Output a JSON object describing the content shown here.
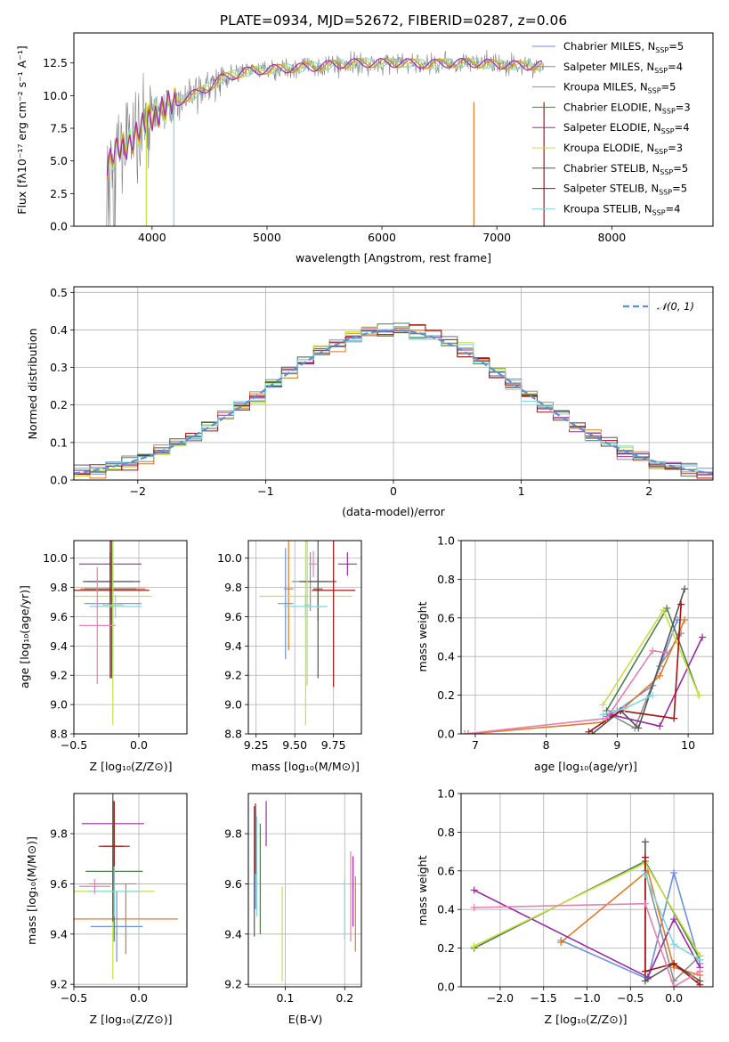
{
  "colors": {
    "Chabrier MILES": "#6c8ee3",
    "Salpeter MILES": "#8e8e8e",
    "Kroupa MILES": "#e07b24",
    "Chabrier ELODIE": "#4e7d4e",
    "Salpeter ELODIE": "#9b2aa6",
    "Kroupa ELODIE": "#c8e040",
    "Chabrier STELIB": "#555555",
    "Salpeter STELIB": "#a81010",
    "Kroupa STELIB": "#7fd8df",
    "extra_pink": "#e87fb0",
    "extra_lime": "#a8e060",
    "data_gray": "#808080",
    "normal_curve": "#5b8fd6"
  },
  "chart_data": [
    {
      "id": "spectrum",
      "type": "line",
      "title": "PLATE=0934, MJD=52672, FIBERID=0287, z=0.06",
      "xlabel": "wavelength [Angstrom, rest frame]",
      "ylabel": "Flux [fλ10⁻¹⁷ erg cm⁻² s⁻¹ A⁻¹]",
      "xlim": [
        3320,
        8880
      ],
      "ylim": [
        0,
        14.8
      ],
      "xticks": [
        4000,
        5000,
        6000,
        7000,
        8000
      ],
      "yticks": [
        0.0,
        2.5,
        5.0,
        7.5,
        10.0,
        12.5
      ],
      "legend_position": "right",
      "legend": [
        "Chabrier MILES, N_SSP=5",
        "Salpeter MILES, N_SSP=4",
        "Kroupa MILES, N_SSP=5",
        "Chabrier ELODIE, N_SSP=3",
        "Salpeter ELODIE, N_SSP=4",
        "Kroupa ELODIE, N_SSP=3",
        "Chabrier STELIB, N_SSP=5",
        "Salpeter STELIB, N_SSP=5",
        "Kroupa STELIB, N_SSP=4"
      ],
      "continuum_x": [
        3600,
        3700,
        3800,
        3900,
        4000,
        4100,
        4200,
        4300,
        4400,
        4500,
        4600,
        4800,
        5000,
        5200,
        5400,
        5600,
        5800,
        6000,
        6200,
        6400,
        6600,
        6800,
        7000,
        7200,
        7400
      ],
      "continuum_y": [
        4.5,
        5.8,
        6.4,
        7.3,
        8.5,
        9.0,
        9.4,
        9.9,
        10.2,
        10.7,
        11.3,
        11.8,
        12.0,
        12.1,
        12.2,
        12.4,
        12.5,
        12.5,
        12.5,
        12.4,
        12.5,
        12.5,
        12.4,
        12.3,
        12.3
      ]
    },
    {
      "id": "residuals",
      "type": "bar",
      "xlabel": "(data-model)/error",
      "ylabel": "Normed distribution",
      "xlim": [
        -2.5,
        2.5
      ],
      "ylim": [
        0,
        0.515
      ],
      "xticks": [
        -2,
        -1,
        0,
        1,
        2
      ],
      "yticks": [
        0.0,
        0.1,
        0.2,
        0.3,
        0.4,
        0.5
      ],
      "legend": [
        "𝒩(0, 1)"
      ],
      "legend_position": "top-right"
    },
    {
      "id": "age_vs_Z",
      "type": "scatter",
      "xlabel": "Z [log₁₀(Z/Z⊙)]",
      "ylabel": "age  [log₁₀(age/yr)]",
      "xlim": [
        -0.5,
        0.37
      ],
      "ylim": [
        8.8,
        10.12
      ],
      "xticks": [
        -0.5,
        0.0
      ],
      "yticks": [
        8.8,
        9.0,
        9.2,
        9.4,
        9.6,
        9.8,
        10.0
      ],
      "points": [
        {
          "c": "Chabrier MILES",
          "x": -0.2,
          "y": 9.69,
          "xe": 0.22,
          "ye": 0.38
        },
        {
          "c": "Salpeter MILES",
          "x": -0.22,
          "y": 9.84,
          "xe": 0.18,
          "ye": 0.2
        },
        {
          "c": "Kroupa MILES",
          "x": -0.2,
          "y": 9.79,
          "xe": 0.25,
          "ye": 0.2
        },
        {
          "c": "Chabrier ELODIE",
          "x": -0.22,
          "y": 9.79,
          "xe": 0.2,
          "ye": 0.22
        },
        {
          "c": "Salpeter ELODIE",
          "x": -0.22,
          "y": 9.96,
          "xe": 0.24,
          "ye": 0.08
        },
        {
          "c": "Kroupa ELODIE",
          "x": -0.2,
          "y": 9.74,
          "xe": 0.3,
          "ye": 0.88
        },
        {
          "c": "Chabrier STELIB",
          "x": -0.21,
          "y": 9.84,
          "xe": 0.22,
          "ye": 0.66
        },
        {
          "c": "Salpeter STELIB",
          "x": -0.22,
          "y": 9.78,
          "xe": 0.3,
          "ye": 0.6
        },
        {
          "c": "Kroupa STELIB",
          "x": -0.18,
          "y": 9.67,
          "xe": 0.2,
          "ye": 0.08
        },
        {
          "c": "extra_pink",
          "x": -0.32,
          "y": 9.54,
          "xe": 0.14,
          "ye": 0.4
        },
        {
          "c": "extra_lime",
          "x": -0.2,
          "y": 9.68,
          "xe": 0.08,
          "ye": 0.48
        }
      ]
    },
    {
      "id": "age_vs_mass",
      "type": "scatter",
      "xlabel": "mass [log₁₀(M/M⊙)]",
      "xlim": [
        9.2,
        9.93
      ],
      "ylim": [
        8.8,
        10.12
      ],
      "xticks": [
        9.25,
        9.5,
        9.75
      ],
      "yticks": [
        8.8,
        9.0,
        9.2,
        9.4,
        9.6,
        9.8,
        10.0
      ],
      "points": [
        {
          "c": "Chabrier MILES",
          "x": 9.44,
          "y": 9.69,
          "xe": 0.05,
          "ye": 0.38
        },
        {
          "c": "Salpeter MILES",
          "x": 9.6,
          "y": 9.84,
          "xe": 0.12,
          "ye": 0.2
        },
        {
          "c": "Kroupa MILES",
          "x": 9.46,
          "y": 9.79,
          "xe": 0.03,
          "ye": 0.42
        },
        {
          "c": "Chabrier ELODIE",
          "x": 9.65,
          "y": 9.79,
          "xe": 0.03,
          "ye": 0.22
        },
        {
          "c": "Salpeter ELODIE",
          "x": 9.84,
          "y": 9.96,
          "xe": 0.06,
          "ye": 0.08
        },
        {
          "c": "Kroupa ELODIE",
          "x": 9.57,
          "y": 9.74,
          "xe": 0.3,
          "ye": 0.88
        },
        {
          "c": "Chabrier STELIB",
          "x": 9.65,
          "y": 9.84,
          "xe": 0.12,
          "ye": 0.66
        },
        {
          "c": "Salpeter STELIB",
          "x": 9.75,
          "y": 9.78,
          "xe": 0.14,
          "ye": 0.66
        },
        {
          "c": "Kroupa STELIB",
          "x": 9.57,
          "y": 9.67,
          "xe": 0.14,
          "ye": 0.08
        },
        {
          "c": "extra_pink",
          "x": 9.62,
          "y": 9.96,
          "xe": 0.03,
          "ye": 0.09
        },
        {
          "c": "extra_lime",
          "x": 9.58,
          "y": 9.68,
          "xe": 0.02,
          "ye": 0.55
        }
      ]
    },
    {
      "id": "massweight_vs_age",
      "type": "line",
      "xlabel": "age  [log₁₀(age/yr)]",
      "ylabel": "mass weight",
      "xlim": [
        6.8,
        10.35
      ],
      "ylim": [
        0,
        1.0
      ],
      "xticks": [
        7,
        8,
        9,
        10
      ],
      "yticks": [
        0.0,
        0.2,
        0.4,
        0.6,
        0.8,
        1.0
      ],
      "series": [
        {
          "c": "Chabrier MILES",
          "x": [
            8.85,
            9.0,
            9.5,
            9.85
          ],
          "y": [
            0.09,
            0.12,
            0.25,
            0.59
          ]
        },
        {
          "c": "Salpeter MILES",
          "x": [
            8.9,
            9.25,
            9.6,
            9.9
          ],
          "y": [
            0.1,
            0.03,
            0.35,
            0.52
          ]
        },
        {
          "c": "Kroupa MILES",
          "x": [
            6.9,
            8.8,
            9.05,
            9.6,
            9.95
          ],
          "y": [
            0.0,
            0.06,
            0.12,
            0.3,
            0.59
          ]
        },
        {
          "c": "Chabrier ELODIE",
          "x": [
            8.85,
            9.7,
            10.15
          ],
          "y": [
            0.12,
            0.65,
            0.2
          ]
        },
        {
          "c": "Salpeter ELODIE",
          "x": [
            8.9,
            9.6,
            10.2
          ],
          "y": [
            0.1,
            0.04,
            0.5
          ]
        },
        {
          "c": "Kroupa ELODIE",
          "x": [
            8.8,
            9.65,
            10.15
          ],
          "y": [
            0.15,
            0.64,
            0.2
          ]
        },
        {
          "c": "Chabrier STELIB",
          "x": [
            8.65,
            9.05,
            9.3,
            9.95
          ],
          "y": [
            0.0,
            0.12,
            0.03,
            0.75
          ]
        },
        {
          "c": "Salpeter STELIB",
          "x": [
            8.6,
            9.05,
            9.8,
            9.9
          ],
          "y": [
            0.01,
            0.12,
            0.08,
            0.67
          ]
        },
        {
          "c": "Kroupa STELIB",
          "x": [
            8.8,
            9.1,
            9.5
          ],
          "y": [
            0.1,
            0.13,
            0.2
          ]
        },
        {
          "c": "extra_pink",
          "x": [
            6.85,
            8.85,
            9.5,
            9.7
          ],
          "y": [
            0.0,
            0.08,
            0.43,
            0.42
          ]
        }
      ]
    },
    {
      "id": "mass_vs_Z",
      "type": "scatter",
      "xlabel": "Z [log₁₀(Z/Z⊙)]",
      "ylabel": "mass [log₁₀(M/M⊙)]",
      "xlim": [
        -0.5,
        0.37
      ],
      "ylim": [
        9.19,
        9.96
      ],
      "xticks": [
        -0.5,
        0.0
      ],
      "yticks": [
        9.2,
        9.4,
        9.6,
        9.8
      ],
      "points": [
        {
          "c": "Chabrier MILES",
          "x": -0.17,
          "y": 9.43,
          "xe": 0.2,
          "ye": 0.14
        },
        {
          "c": "Salpeter MILES",
          "x": -0.2,
          "y": 9.6,
          "xe": 0.18,
          "ye": 0.12
        },
        {
          "c": "Kroupa MILES",
          "x": -0.1,
          "y": 9.46,
          "xe": 0.4,
          "ye": 0.14
        },
        {
          "c": "Chabrier ELODIE",
          "x": -0.19,
          "y": 9.65,
          "xe": 0.22,
          "ye": 0.28
        },
        {
          "c": "Salpeter ELODIE",
          "x": -0.2,
          "y": 9.84,
          "xe": 0.24,
          "ye": 0.09
        },
        {
          "c": "Kroupa ELODIE",
          "x": -0.2,
          "y": 9.57,
          "xe": 0.32,
          "ye": 0.35
        },
        {
          "c": "Chabrier STELIB",
          "x": -0.2,
          "y": 9.75,
          "xe": 0.08,
          "ye": 0.3
        },
        {
          "c": "Salpeter STELIB",
          "x": -0.19,
          "y": 9.75,
          "xe": 0.12,
          "ye": 0.18
        },
        {
          "c": "Kroupa STELIB",
          "x": -0.19,
          "y": 9.57,
          "xe": 0.2,
          "ye": 0.1
        },
        {
          "c": "extra_pink",
          "x": -0.34,
          "y": 9.59,
          "xe": 0.12,
          "ye": 0.03
        }
      ]
    },
    {
      "id": "mass_vs_ebv",
      "type": "scatter",
      "xlabel": "E(B-V)",
      "xlim": [
        0.038,
        0.228
      ],
      "ylim": [
        9.19,
        9.96
      ],
      "xticks": [
        0.0,
        0.1,
        0.2
      ],
      "yticks": [
        9.2,
        9.4,
        9.6,
        9.8
      ],
      "points": [
        {
          "c": "Chabrier MILES",
          "x": 0.05,
          "y": 9.7,
          "ye": 0.2
        },
        {
          "c": "Chabrier ELODIE",
          "x": 0.058,
          "y": 9.62,
          "ye": 0.22
        },
        {
          "c": "Salpeter ELODIE",
          "x": 0.068,
          "y": 9.84,
          "ye": 0.09
        },
        {
          "c": "Kroupa ELODIE",
          "x": 0.095,
          "y": 9.4,
          "ye": 0.19
        },
        {
          "c": "Chabrier STELIB",
          "x": 0.048,
          "y": 9.65,
          "ye": 0.26
        },
        {
          "c": "Salpeter STELIB",
          "x": 0.05,
          "y": 9.78,
          "ye": 0.14
        },
        {
          "c": "Kroupa STELIB",
          "x": 0.052,
          "y": 9.67,
          "ye": 0.2
        },
        {
          "c": "extra_pink",
          "x": 0.21,
          "y": 9.55,
          "ye": 0.18
        },
        {
          "c": "Kroupa MILES",
          "x": 0.218,
          "y": 9.48,
          "ye": 0.15
        },
        {
          "c": "Salpeter ELODIE",
          "x": 0.214,
          "y": 9.57,
          "ye": 0.14
        },
        {
          "c": "Kroupa STELIB",
          "x": 0.2,
          "y": 9.5,
          "ye": 0.12
        }
      ]
    },
    {
      "id": "massweight_vs_Z",
      "type": "line",
      "xlabel": "Z [log₁₀(Z/Z⊙)]",
      "ylabel": "mass weight",
      "xlim": [
        -2.45,
        0.45
      ],
      "ylim": [
        0,
        1.0
      ],
      "xticks": [
        -2.0,
        -1.5,
        -1.0,
        -0.5,
        0.0
      ],
      "yticks": [
        0.0,
        0.2,
        0.4,
        0.6,
        0.8,
        1.0
      ],
      "series": [
        {
          "c": "Chabrier MILES",
          "x": [
            -1.3,
            -0.3,
            0.0,
            0.3
          ],
          "y": [
            0.24,
            0.04,
            0.59,
            0.12
          ]
        },
        {
          "c": "Salpeter MILES",
          "x": [
            -0.33,
            0.0,
            0.3
          ],
          "y": [
            0.6,
            0.03,
            0.16
          ]
        },
        {
          "c": "Kroupa MILES",
          "x": [
            -1.3,
            -0.3,
            0.0,
            0.3
          ],
          "y": [
            0.23,
            0.6,
            0.1,
            0.06
          ]
        },
        {
          "c": "Chabrier ELODIE",
          "x": [
            -2.3,
            -0.33,
            0.3
          ],
          "y": [
            0.2,
            0.65,
            0.14
          ]
        },
        {
          "c": "Salpeter ELODIE",
          "x": [
            -2.3,
            -0.3,
            0.0,
            0.3
          ],
          "y": [
            0.5,
            0.05,
            0.35,
            0.1
          ]
        },
        {
          "c": "Kroupa ELODIE",
          "x": [
            -2.3,
            -0.33,
            0.3
          ],
          "y": [
            0.21,
            0.64,
            0.16
          ]
        },
        {
          "c": "Chabrier STELIB",
          "x": [
            -0.33,
            -0.33,
            0.0,
            0.3
          ],
          "y": [
            0.75,
            0.03,
            0.12,
            0.03
          ]
        },
        {
          "c": "Salpeter STELIB",
          "x": [
            -0.33,
            -0.33,
            0.0,
            0.3
          ],
          "y": [
            0.67,
            0.08,
            0.12,
            0.01
          ]
        },
        {
          "c": "Kroupa STELIB",
          "x": [
            -0.33,
            0.0,
            0.3
          ],
          "y": [
            0.58,
            0.22,
            0.14
          ]
        },
        {
          "c": "extra_pink",
          "x": [
            -2.3,
            -0.33,
            0.0,
            0.3
          ],
          "y": [
            0.41,
            0.43,
            0.0,
            0.08
          ]
        }
      ]
    }
  ]
}
